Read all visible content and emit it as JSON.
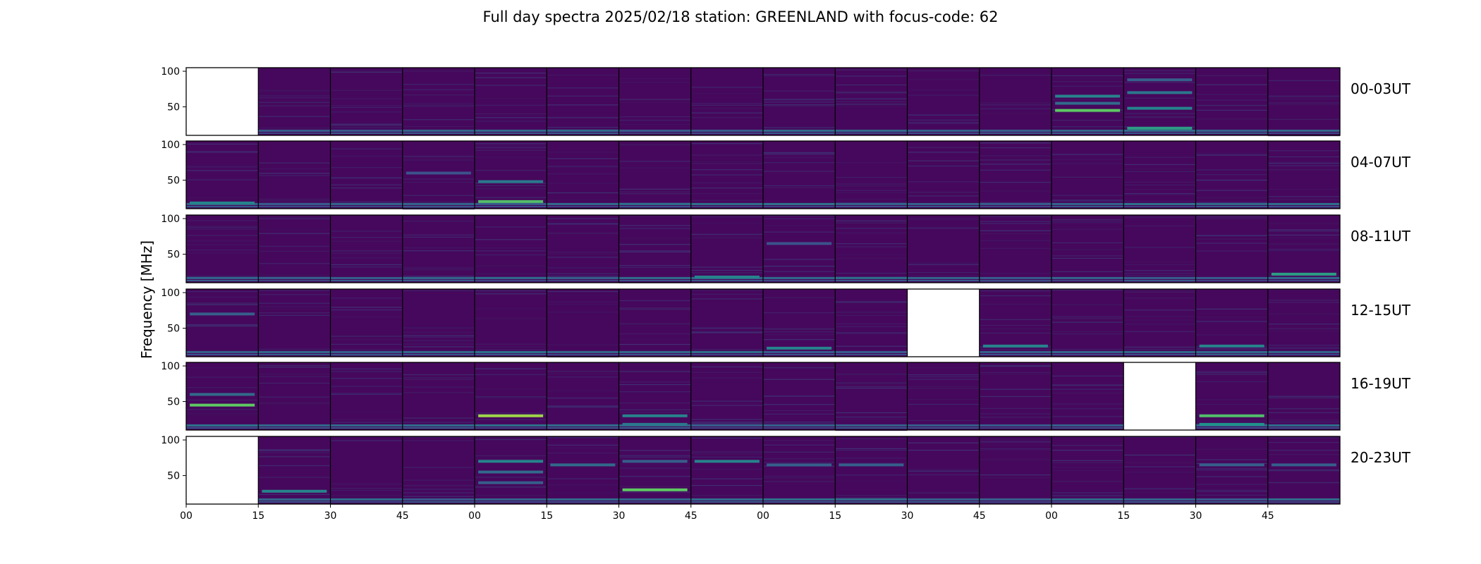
{
  "title": "Full day spectra 2025/02/18 station: GREENLAND with focus-code: 62",
  "chart_data": {
    "type": "heatmap",
    "title": "Full day spectra 2025/02/18 station: GREENLAND with focus-code: 62",
    "ylabel": "Frequency [MHz]",
    "xlabel": "",
    "ylim": [
      10,
      105
    ],
    "y_ticks": [
      "100",
      "50"
    ],
    "x_ticks": [
      "00",
      "15",
      "30",
      "45",
      "00",
      "15",
      "30",
      "45",
      "00",
      "15",
      "30",
      "45",
      "00",
      "15",
      "30",
      "45"
    ],
    "colormap": "viridis",
    "background_color": "#46085c",
    "rows": [
      {
        "label": "00-03UT",
        "missing": [
          0
        ],
        "events": [
          {
            "panel": 12,
            "mhz": 45,
            "intensity": 0.75
          },
          {
            "panel": 12,
            "mhz": 65,
            "intensity": 0.45
          },
          {
            "panel": 12,
            "mhz": 55,
            "intensity": 0.35
          },
          {
            "panel": 13,
            "mhz": 20,
            "intensity": 0.55
          },
          {
            "panel": 13,
            "mhz": 48,
            "intensity": 0.45
          },
          {
            "panel": 13,
            "mhz": 70,
            "intensity": 0.4
          },
          {
            "panel": 13,
            "mhz": 88,
            "intensity": 0.3
          }
        ]
      },
      {
        "label": "04-07UT",
        "missing": [],
        "events": [
          {
            "panel": 0,
            "mhz": 18,
            "intensity": 0.45
          },
          {
            "panel": 4,
            "mhz": 20,
            "intensity": 0.7
          },
          {
            "panel": 4,
            "mhz": 48,
            "intensity": 0.4
          },
          {
            "panel": 3,
            "mhz": 60,
            "intensity": 0.25
          }
        ]
      },
      {
        "label": "08-11UT",
        "missing": [],
        "events": [
          {
            "panel": 7,
            "mhz": 18,
            "intensity": 0.45
          },
          {
            "panel": 15,
            "mhz": 22,
            "intensity": 0.55
          },
          {
            "panel": 8,
            "mhz": 65,
            "intensity": 0.25
          }
        ]
      },
      {
        "label": "12-15UT",
        "missing": [
          10
        ],
        "events": [
          {
            "panel": 0,
            "mhz": 70,
            "intensity": 0.3
          },
          {
            "panel": 8,
            "mhz": 22,
            "intensity": 0.45
          },
          {
            "panel": 11,
            "mhz": 25,
            "intensity": 0.45
          },
          {
            "panel": 14,
            "mhz": 25,
            "intensity": 0.45
          }
        ]
      },
      {
        "label": "16-19UT",
        "missing": [
          13
        ],
        "events": [
          {
            "panel": 0,
            "mhz": 45,
            "intensity": 0.75
          },
          {
            "panel": 0,
            "mhz": 60,
            "intensity": 0.35
          },
          {
            "panel": 4,
            "mhz": 30,
            "intensity": 0.85
          },
          {
            "panel": 6,
            "mhz": 30,
            "intensity": 0.45
          },
          {
            "panel": 6,
            "mhz": 18,
            "intensity": 0.4
          },
          {
            "panel": 14,
            "mhz": 30,
            "intensity": 0.7
          },
          {
            "panel": 14,
            "mhz": 18,
            "intensity": 0.5
          }
        ]
      },
      {
        "label": "20-23UT",
        "missing": [
          0
        ],
        "events": [
          {
            "panel": 1,
            "mhz": 28,
            "intensity": 0.45
          },
          {
            "panel": 4,
            "mhz": 70,
            "intensity": 0.45
          },
          {
            "panel": 4,
            "mhz": 55,
            "intensity": 0.35
          },
          {
            "panel": 4,
            "mhz": 40,
            "intensity": 0.3
          },
          {
            "panel": 5,
            "mhz": 65,
            "intensity": 0.35
          },
          {
            "panel": 6,
            "mhz": 30,
            "intensity": 0.75
          },
          {
            "panel": 6,
            "mhz": 70,
            "intensity": 0.3
          },
          {
            "panel": 7,
            "mhz": 70,
            "intensity": 0.45
          },
          {
            "panel": 8,
            "mhz": 65,
            "intensity": 0.3
          },
          {
            "panel": 9,
            "mhz": 65,
            "intensity": 0.3
          },
          {
            "panel": 14,
            "mhz": 65,
            "intensity": 0.3
          },
          {
            "panel": 15,
            "mhz": 65,
            "intensity": 0.3
          }
        ]
      }
    ]
  }
}
